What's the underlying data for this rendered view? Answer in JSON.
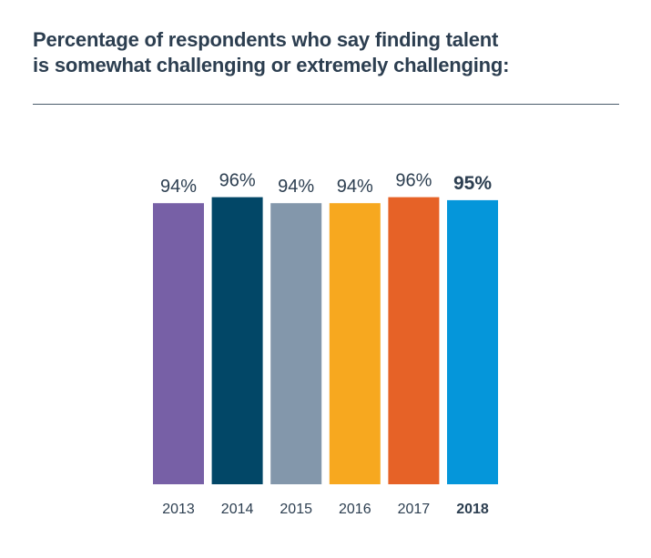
{
  "title_lines": [
    "Percentage of respondents who say finding talent",
    "is somewhat challenging or extremely challenging:"
  ],
  "chart_data": {
    "type": "bar",
    "title": "Percentage of respondents who say finding talent is somewhat challenging or extremely challenging:",
    "categories": [
      "2013",
      "2014",
      "2015",
      "2016",
      "2017",
      "2018"
    ],
    "values": [
      94,
      96,
      94,
      94,
      96,
      95
    ],
    "data_labels": [
      "94%",
      "96%",
      "94%",
      "94%",
      "96%",
      "95%"
    ],
    "highlighted_category": "2018",
    "colors": [
      "#7760a6",
      "#024767",
      "#8397ab",
      "#f7a81f",
      "#e66227",
      "#0596da"
    ],
    "ylim": [
      0,
      100
    ],
    "grid": false,
    "legend": "none"
  },
  "colors": {
    "title": "#2c3e50",
    "labels": "#2c3e50",
    "rule": "#4a5b6b"
  }
}
